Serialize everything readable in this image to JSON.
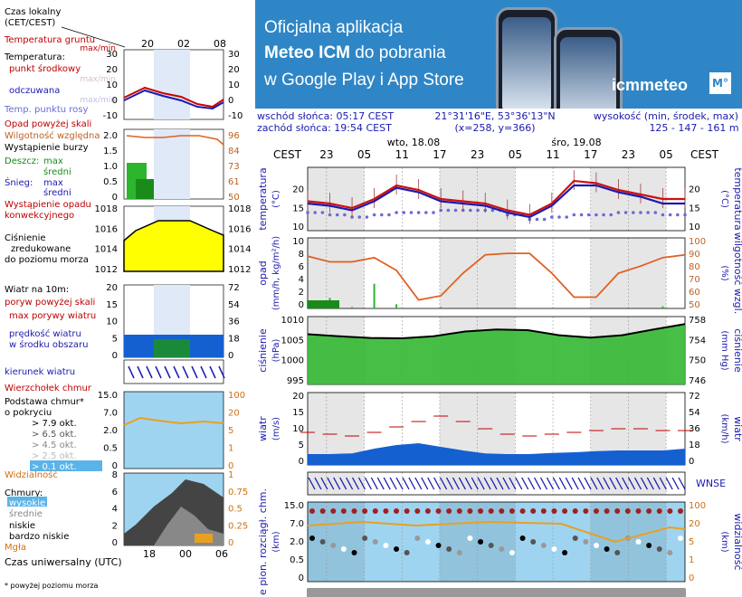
{
  "banner": {
    "line1": "Oficjalna aplikacja",
    "line2_bold": "Meteo ICM",
    "line2_rest": " do pobrania",
    "line3": "w Google Play i App Store",
    "logo": "icmmeteo",
    "badge": "M°"
  },
  "header": {
    "sunrise": "wschód słońca: 05:17 CEST",
    "sunset": "zachód słońca: 19:54 CEST",
    "coords": "21°31'16\"E, 53°36'13\"N",
    "grid": "(x=258,  y=366)",
    "elev_label": "wysokość (min, środek, max)",
    "elev_values": "125 - 147 - 161 m",
    "day1": "wto, 18.08",
    "day2": "śro, 19.08",
    "tz_left": "CEST",
    "tz_right": "CEST",
    "hours": [
      "23",
      "05",
      "11",
      "17",
      "23",
      "05",
      "11",
      "17",
      "23",
      "05"
    ]
  },
  "legend": {
    "local_time": "Czas lokalny",
    "local_time_sub": "(CET/CEST)",
    "top_hours": [
      "20",
      "02",
      "08"
    ],
    "soil_temp": "Temperatura gruntu",
    "soil_temp_sub": "max/min",
    "temp": "Temperatura:",
    "temp_mid": "punkt środkowy",
    "temp_mid_sub": "max/min",
    "feels": "odczuwana",
    "feels_sub": "max/min",
    "dew": "Temp. punktu rosy",
    "temp_ticks": [
      "30",
      "20",
      "10",
      "0",
      "-10"
    ],
    "precip_above": "Opad powyżej skali",
    "humidity": "Wilgotność względna",
    "storm": "Wystąpienie burzy",
    "rain": "Deszcz:",
    "rain_max": "max",
    "rain_avg": "średni",
    "snow": "Śnieg:",
    "snow_max": "max",
    "snow_avg": "średni",
    "precip_occ": "Wystąpienie opadu",
    "precip_occ2": "konwekcyjnego",
    "precip_ticks": [
      "2.0",
      "1.5",
      "1.0",
      "0.5",
      "0"
    ],
    "hum_ticks": [
      "96",
      "84",
      "73",
      "61",
      "50"
    ],
    "pressure": "Ciśnienie",
    "pressure2": "zredukowane",
    "pressure3": "do poziomu morza",
    "press_ticks": [
      "1018",
      "1016",
      "1014",
      "1012"
    ],
    "wind10": "Wiatr na 10m:",
    "gust_above": "poryw powyżej skali",
    "gust_max": "max porywy wiatru",
    "wind_speed": "prędkość wiatru",
    "wind_speed2": "w środku obszaru",
    "wind_ticks_l": [
      "20",
      "15",
      "10",
      "5",
      "0"
    ],
    "wind_ticks_r": [
      "72",
      "54",
      "36",
      "18",
      "0"
    ],
    "wind_dir": "kierunek wiatru",
    "cloud_top": "Wierzchołek chmur",
    "cloud_base": "Podstawa chmur*",
    "cloud_cov": "o pokryciu",
    "okt": [
      "> 7.9 okt.",
      "> 6.5 okt.",
      "> 4.5 okt.",
      "> 2.5 okt.",
      "> 0.1 okt."
    ],
    "cb_ticks": [
      "15.0",
      "7.0",
      "2.0",
      "0.5",
      "0"
    ],
    "cb_ticks_r": [
      "100",
      "20",
      "5",
      "1",
      "0"
    ],
    "visibility": "Widzialność",
    "clouds": "Chmury:",
    "c_high": "wysokie",
    "c_mid": "średnie",
    "c_low": "niskie",
    "c_vlow": "bardzo niskie",
    "fog": "Mgła",
    "cl_ticks": [
      "8",
      "6",
      "4",
      "2",
      "0"
    ],
    "cl_ticks_r": [
      "1",
      "0.75",
      "0.5",
      "0.25",
      "0"
    ],
    "utc_hours": [
      "18",
      "00",
      "06"
    ],
    "utc": "Czas uniwersalny (UTC)",
    "footnote": "* powyżej poziomu morza"
  },
  "panels": {
    "temp": {
      "l": "temperatura",
      "u": "(°C)",
      "r": "temperatura",
      "ru": "(°C)",
      "ticks": [
        "20",
        "15",
        "10"
      ]
    },
    "precip": {
      "l": "opad",
      "u": "(mm/h, kg/m²/h)",
      "r": "wilgotność wzgl.",
      "ru": "(%)",
      "ticks_l": [
        "10",
        "8",
        "6",
        "4",
        "2",
        "0"
      ],
      "ticks_r": [
        "100",
        "90",
        "80",
        "70",
        "60",
        "50"
      ]
    },
    "press": {
      "l": "ciśnienie",
      "u": "(hPa)",
      "r": "ciśnienie",
      "ru": "(mm Hg)",
      "ticks_l": [
        "1010",
        "1005",
        "1000",
        "995"
      ],
      "ticks_r": [
        "758",
        "754",
        "750",
        "746"
      ]
    },
    "wind": {
      "l": "wiatr",
      "u": "(m/s)",
      "r": "wiatr",
      "ru": "(km/h)",
      "ticks_l": [
        "20",
        "15",
        "10",
        "5",
        "0"
      ],
      "ticks_r": [
        "72",
        "54",
        "36",
        "18",
        "0"
      ]
    },
    "dir": {
      "compass": "WNSE"
    },
    "cloud": {
      "l": "e pion. rozciągł. chm.",
      "u": "(km)",
      "r": "widzialność",
      "ru": "(km)",
      "ticks_l": [
        "15.0",
        "7.0",
        "2.0",
        "0.5",
        "0"
      ],
      "ticks_r": [
        "100",
        "20",
        "5",
        "1",
        "0"
      ]
    }
  },
  "chart_data": [
    {
      "type": "line",
      "title": "temperatura",
      "ylabel": "(°C)",
      "ylim": [
        9,
        23
      ],
      "x": [
        "17 22:00",
        "18 02:00",
        "18 06:00",
        "18 10:00",
        "18 12:00",
        "18 14:00",
        "18 16:00",
        "18 18:00",
        "18 22:00",
        "19 02:00",
        "19 06:00",
        "19 09:00",
        "19 12:00",
        "19 16:00",
        "19 20:00",
        "19 23:00",
        "20 04:00",
        "20 09:00"
      ],
      "series": [
        {
          "name": "punkt środkowy",
          "values": [
            15.5,
            15,
            14,
            16,
            19,
            18,
            16,
            15.5,
            15,
            13.5,
            12.5,
            15,
            20,
            19.5,
            18,
            17,
            16,
            16
          ]
        },
        {
          "name": "odczuwana",
          "values": [
            15,
            14.5,
            13.5,
            15.5,
            18.5,
            17.5,
            15.5,
            15,
            14.5,
            13,
            12,
            14.5,
            19,
            19,
            17.5,
            16.5,
            15,
            15
          ]
        },
        {
          "name": "Temp. punktu rosy",
          "values": [
            13,
            12.5,
            12,
            12.5,
            13,
            13,
            13.5,
            13.5,
            13.5,
            12.5,
            11.5,
            12,
            12.5,
            12.5,
            13,
            13,
            12.5,
            12.5
          ]
        }
      ]
    },
    {
      "type": "bar",
      "title": "opad / wilgotność wzgl.",
      "ylim": [
        0,
        10
      ],
      "ylim_right": [
        50,
        100
      ],
      "series": [
        {
          "name": "wilgotność względna",
          "values": [
            87,
            83,
            83,
            86,
            77,
            56,
            59,
            75,
            88,
            89,
            89,
            75,
            58,
            58,
            75,
            80,
            86,
            88
          ]
        },
        {
          "name": "opad",
          "values": [
            1.2,
            1.5,
            0.2,
            3.5,
            0.6,
            0,
            0.2,
            0,
            0,
            0,
            0,
            0,
            0,
            0,
            0,
            0,
            0.3,
            0
          ]
        }
      ]
    },
    {
      "type": "area",
      "title": "ciśnienie",
      "ylabel": "(hPa)",
      "ylim": [
        990,
        1010
      ],
      "values": [
        1004.8,
        1004.2,
        1003.7,
        1003.6,
        1004.2,
        1005.6,
        1006.2,
        1006,
        1004.5,
        1003.8,
        1004.5,
        1006.2,
        1007.8
      ]
    },
    {
      "type": "line",
      "title": "wiatr",
      "ylabel": "(m/s)",
      "ylim": [
        0,
        20
      ],
      "series": [
        {
          "name": "max porywy wiatru",
          "values": [
            9,
            8.5,
            8,
            9,
            10.5,
            12,
            13.5,
            12,
            10,
            8.5,
            8,
            8.5,
            9,
            9.5,
            10,
            10,
            9.5,
            9.5
          ]
        },
        {
          "name": "prędkość wiatru",
          "values": [
            3,
            3,
            3.2,
            4.5,
            5.5,
            6,
            5,
            4,
            3.2,
            3,
            3,
            3.3,
            3.5,
            3.8,
            4,
            4,
            4,
            4.5
          ]
        }
      ]
    }
  ]
}
